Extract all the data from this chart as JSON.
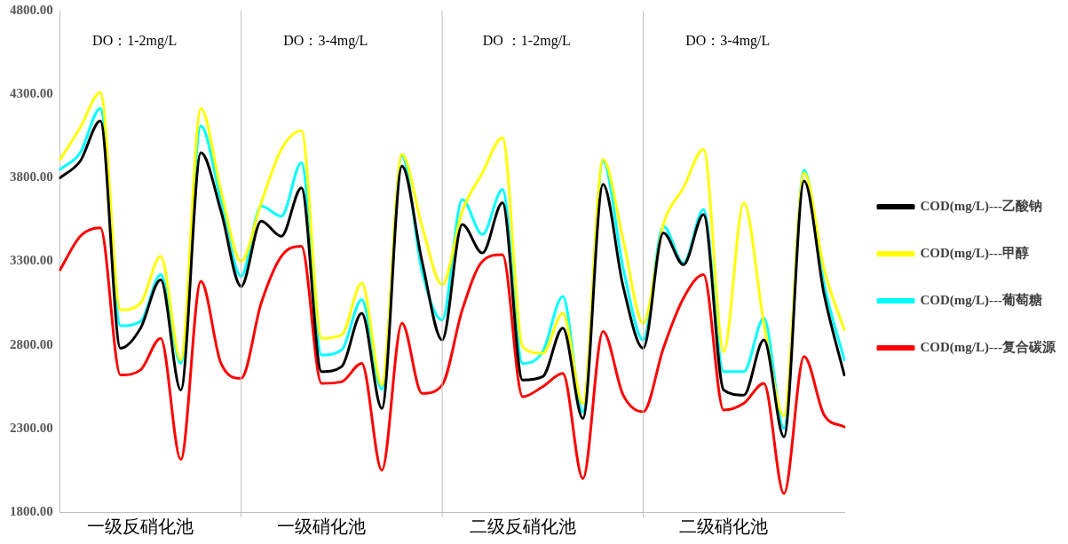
{
  "chart_data": {
    "type": "line",
    "categories": [
      null,
      null,
      null,
      null,
      "一级反硝化池",
      null,
      null,
      null,
      null,
      null,
      null,
      null,
      null,
      "一级硝化池",
      null,
      null,
      null,
      null,
      null,
      null,
      null,
      null,
      null,
      "二级反硝化池",
      null,
      null,
      null,
      null,
      null,
      null,
      null,
      null,
      null,
      "二级硝化池",
      null,
      null,
      null,
      null,
      null,
      null
    ],
    "series": [
      {
        "name": "COD(mg/L)---乙酸钠",
        "color": "#000000",
        "values": [
          3800,
          3900,
          4140,
          2780,
          2900,
          3190,
          2530,
          3950,
          3600,
          3150,
          3540,
          3450,
          3740,
          2640,
          2670,
          2990,
          2420,
          3870,
          3300,
          2830,
          3520,
          3350,
          3650,
          2590,
          2610,
          2900,
          2360,
          3760,
          3150,
          2780,
          3470,
          3280,
          3580,
          2530,
          2500,
          2830,
          2250,
          3780,
          3100,
          2620
        ]
      },
      {
        "name": "COD(mg/L)---甲醇",
        "color": "#ffff00",
        "values": [
          3910,
          4100,
          4310,
          3010,
          3050,
          3330,
          2710,
          4215,
          3720,
          3300,
          3650,
          3970,
          4080,
          2840,
          2860,
          3170,
          2560,
          3940,
          3510,
          3160,
          3600,
          3830,
          4040,
          2790,
          2750,
          2990,
          2450,
          3910,
          3430,
          2930,
          3520,
          3740,
          3970,
          2760,
          3650,
          2930,
          2375,
          3830,
          3250,
          2890
        ]
      },
      {
        "name": "COD(mg/L)---葡萄糖",
        "color": "#00ffff",
        "values": [
          3850,
          3950,
          4215,
          2915,
          2940,
          3220,
          2690,
          4110,
          3660,
          3210,
          3630,
          3570,
          3890,
          2740,
          2770,
          3070,
          2535,
          3930,
          3240,
          2950,
          3670,
          3460,
          3730,
          2690,
          2760,
          3090,
          2400,
          3900,
          3260,
          2830,
          3510,
          3290,
          3610,
          2640,
          2640,
          2960,
          2300,
          3845,
          3160,
          2710
        ]
      },
      {
        "name": "COD(mg/L)---复合碳源",
        "color": "#ff0000",
        "values": [
          3250,
          3450,
          3500,
          2620,
          2650,
          2840,
          2115,
          3180,
          2690,
          2600,
          3050,
          3330,
          3390,
          2570,
          2580,
          2690,
          2050,
          2930,
          2510,
          2560,
          3010,
          3300,
          3340,
          2490,
          2550,
          2630,
          2000,
          2880,
          2500,
          2400,
          2780,
          3080,
          3220,
          2410,
          2450,
          2570,
          1910,
          2730,
          2380,
          2310
        ]
      }
    ],
    "ylim": [
      1800,
      4800
    ],
    "yticks": [
      {
        "value": 1800,
        "label": "1800.00"
      },
      {
        "value": 2300,
        "label": "2300.00"
      },
      {
        "value": 2800,
        "label": "2800.00"
      },
      {
        "value": 3300,
        "label": "3300.00"
      },
      {
        "value": 3800,
        "label": "3800.00"
      },
      {
        "value": 4300,
        "label": "4300.00"
      },
      {
        "value": 4800,
        "label": "4800.00"
      }
    ],
    "annotations": [
      "DO：1-2mg/L",
      "DO：3-4mg/L",
      "DO ：1-2mg/L",
      "DO：3-4mg/L"
    ],
    "grid": "x",
    "legend": "right",
    "marker": "none",
    "line_style": "solid"
  }
}
